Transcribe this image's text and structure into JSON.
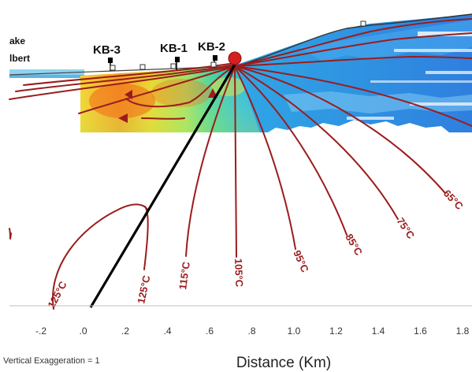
{
  "lake_label": [
    "ake",
    "lbert"
  ],
  "wells": [
    {
      "id": "kb3",
      "label": "KB-3"
    },
    {
      "id": "kb1",
      "label": "KB-1"
    },
    {
      "id": "kb2",
      "label": "KB-2"
    }
  ],
  "isotherms": [
    {
      "id": "125a",
      "label": "125°C"
    },
    {
      "id": "125b",
      "label": "125°C"
    },
    {
      "id": "115",
      "label": "115°C"
    },
    {
      "id": "105",
      "label": "105°C"
    },
    {
      "id": "95",
      "label": "95°C"
    },
    {
      "id": "85",
      "label": "85°C"
    },
    {
      "id": "75",
      "label": "75°C"
    },
    {
      "id": "65",
      "label": "65°C"
    }
  ],
  "axis": {
    "ticks": [
      "-.2",
      ".0",
      ".2",
      ".4",
      ".6",
      ".8",
      "1.0",
      "1.2",
      "1.4",
      "1.6",
      "1.8"
    ],
    "xlabel": "Distance (Km)"
  },
  "vertical_exaggeration": "Vertical Exaggeration = 1",
  "colors": {
    "isotherm": "#9b1c1c",
    "fault": "#000000",
    "source_dot": "#d61f1f"
  }
}
